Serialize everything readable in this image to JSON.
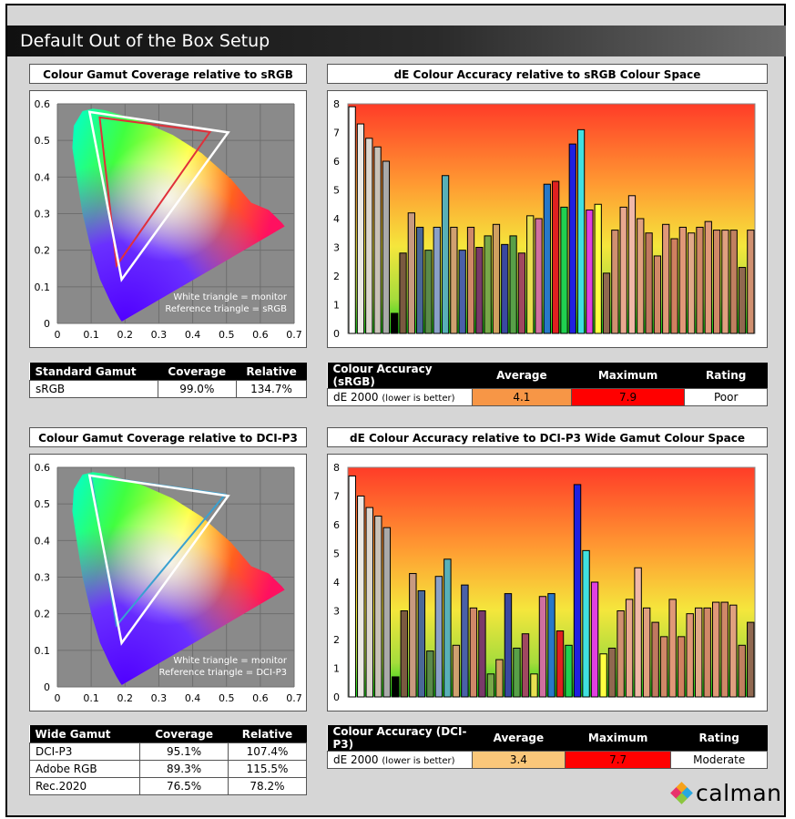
{
  "header": {
    "title": "Default Out of the Box Setup"
  },
  "gamut_srgb": {
    "title": "Colour Gamut Coverage relative to sRGB",
    "note_line1": "White triangle = monitor",
    "note_line2": "Reference triangle = sRGB",
    "ref_color": "#e0303a",
    "table": {
      "headers": [
        "Standard Gamut",
        "Coverage",
        "Relative"
      ],
      "rows": [
        {
          "name": "sRGB",
          "coverage": "99.0%",
          "relative": "134.7%"
        }
      ]
    }
  },
  "gamut_dcip3": {
    "title": "Colour Gamut Coverage relative to DCI-P3",
    "note_line1": "White triangle = monitor",
    "note_line2": "Reference triangle = DCI-P3",
    "ref_color": "#3aa0d0",
    "table": {
      "headers": [
        "Wide Gamut",
        "Coverage",
        "Relative"
      ],
      "rows": [
        {
          "name": "DCI-P3",
          "coverage": "95.1%",
          "relative": "107.4%"
        },
        {
          "name": "Adobe RGB",
          "coverage": "89.3%",
          "relative": "115.5%"
        },
        {
          "name": "Rec.2020",
          "coverage": "76.5%",
          "relative": "78.2%"
        }
      ]
    }
  },
  "de_srgb": {
    "title": "dE Colour Accuracy relative to sRGB Colour Space",
    "table": {
      "headers": [
        "Colour Accuracy (sRGB)",
        "Average",
        "Maximum",
        "Rating"
      ],
      "label": "dE 2000",
      "label_note": "(lower is better)",
      "average": "4.1",
      "maximum": "7.9",
      "rating": "Poor",
      "average_color": "#f79646",
      "maximum_color": "#ff0000"
    }
  },
  "de_dcip3": {
    "title": "dE Colour Accuracy relative to DCI-P3 Wide Gamut Colour Space",
    "table": {
      "headers": [
        "Colour Accuracy (DCI-P3)",
        "Average",
        "Maximum",
        "Rating"
      ],
      "label": "dE 2000",
      "label_note": "(lower is better)",
      "average": "3.4",
      "maximum": "7.7",
      "rating": "Moderate",
      "average_color": "#fac77a",
      "maximum_color": "#ff0000"
    }
  },
  "logo": {
    "text": "calman"
  },
  "chart_data": [
    {
      "type": "scatter",
      "title": "Colour Gamut Coverage relative to sRGB",
      "xlim": [
        0,
        0.7
      ],
      "ylim": [
        0,
        0.6
      ],
      "x_ticks": [
        "0",
        "0.1",
        "0.2",
        "0.3",
        "0.4",
        "0.5",
        "0.6",
        "0.7"
      ],
      "y_ticks": [
        "0",
        "0.1",
        "0.2",
        "0.3",
        "0.4",
        "0.5",
        "0.6"
      ],
      "grid": true,
      "monitor_triangle": [
        [
          0.095,
          0.578
        ],
        [
          0.505,
          0.522
        ],
        [
          0.19,
          0.12
        ]
      ],
      "reference_triangle": [
        [
          0.125,
          0.563
        ],
        [
          0.451,
          0.523
        ],
        [
          0.175,
          0.158
        ]
      ]
    },
    {
      "type": "scatter",
      "title": "Colour Gamut Coverage relative to DCI-P3",
      "xlim": [
        0,
        0.7
      ],
      "ylim": [
        0,
        0.6
      ],
      "x_ticks": [
        "0",
        "0.1",
        "0.2",
        "0.3",
        "0.4",
        "0.5",
        "0.6",
        "0.7"
      ],
      "y_ticks": [
        "0",
        "0.1",
        "0.2",
        "0.3",
        "0.4",
        "0.5",
        "0.6"
      ],
      "grid": true,
      "monitor_triangle": [
        [
          0.095,
          0.578
        ],
        [
          0.505,
          0.522
        ],
        [
          0.19,
          0.12
        ]
      ],
      "reference_triangle": [
        [
          0.099,
          0.578
        ],
        [
          0.496,
          0.526
        ],
        [
          0.175,
          0.168
        ]
      ]
    },
    {
      "type": "bar",
      "title": "dE Colour Accuracy relative to sRGB Colour Space",
      "ylim": [
        0,
        8
      ],
      "y_ticks": [
        "0",
        "1",
        "2",
        "3",
        "4",
        "5",
        "6",
        "7",
        "8"
      ],
      "values": [
        7.9,
        7.3,
        6.8,
        6.5,
        6.0,
        0.7,
        2.8,
        4.2,
        3.7,
        2.9,
        3.7,
        5.5,
        3.7,
        2.9,
        3.7,
        3.0,
        3.4,
        3.8,
        3.1,
        3.4,
        2.8,
        4.1,
        4.0,
        5.2,
        5.3,
        4.4,
        6.6,
        7.1,
        4.3,
        4.5,
        2.1,
        3.6,
        4.4,
        4.8,
        4.0,
        3.5,
        2.7,
        3.8,
        3.3,
        3.7,
        3.5,
        3.7,
        3.9,
        3.6,
        3.6,
        3.6,
        2.3,
        3.6
      ],
      "colors": [
        "#ffffff",
        "#ece9e4",
        "#dcd6ce",
        "#c9c2b8",
        "#aaaaaa",
        "#000000",
        "#7a5a40",
        "#c89a80",
        "#4a6898",
        "#5a8a4a",
        "#8aa0c8",
        "#58b0b8",
        "#d0a070",
        "#4a60a8",
        "#d08868",
        "#7a3a6a",
        "#78a848",
        "#d0a060",
        "#3a48a0",
        "#58a048",
        "#a04860",
        "#e8e050",
        "#d070a0",
        "#2878c8",
        "#e02020",
        "#20d050",
        "#2020e0",
        "#40e0e0",
        "#e040e0",
        "#ffff40",
        "#906850",
        "#d09070",
        "#e8a890",
        "#f0b8a8",
        "#e0a080",
        "#c07860",
        "#d08868",
        "#e09878",
        "#d08060",
        "#e09878",
        "#e0a888",
        "#d08868",
        "#e09878",
        "#d08868",
        "#e0a080",
        "#c08060",
        "#906850",
        "#d09070"
      ]
    },
    {
      "type": "bar",
      "title": "dE Colour Accuracy relative to DCI-P3 Wide Gamut Colour Space",
      "ylim": [
        0,
        8
      ],
      "y_ticks": [
        "0",
        "1",
        "2",
        "3",
        "4",
        "5",
        "6",
        "7",
        "8"
      ],
      "values": [
        7.7,
        7.0,
        6.6,
        6.3,
        5.9,
        0.7,
        3.0,
        4.3,
        3.7,
        1.6,
        4.2,
        4.8,
        1.8,
        3.9,
        3.1,
        3.0,
        0.8,
        1.3,
        3.6,
        1.7,
        2.2,
        0.8,
        3.5,
        3.6,
        2.3,
        1.8,
        7.4,
        5.1,
        4.0,
        1.5,
        1.7,
        3.0,
        3.4,
        4.5,
        3.1,
        2.6,
        2.1,
        3.4,
        2.1,
        2.9,
        3.1,
        3.1,
        3.3,
        3.3,
        3.2,
        1.8,
        2.6
      ],
      "colors": [
        "#ffffff",
        "#ece9e4",
        "#dcd6ce",
        "#c9c2b8",
        "#aaaaaa",
        "#000000",
        "#7a5a40",
        "#c89a80",
        "#4a6898",
        "#5a8a4a",
        "#8aa0c8",
        "#58b0b8",
        "#d0a070",
        "#4a60a8",
        "#d08868",
        "#7a3a6a",
        "#78a848",
        "#d0a060",
        "#3a48a0",
        "#58a048",
        "#a04860",
        "#e8e050",
        "#d070a0",
        "#2878c8",
        "#e02020",
        "#20d050",
        "#2020e0",
        "#40e0e0",
        "#e040e0",
        "#ffff40",
        "#906850",
        "#d09070",
        "#e8a890",
        "#f0b8a8",
        "#e0a080",
        "#c07860",
        "#d08868",
        "#e09878",
        "#d08060",
        "#e09878",
        "#e0a888",
        "#d08868",
        "#e09878",
        "#d08868",
        "#e0a080",
        "#c08060",
        "#906850"
      ]
    }
  ]
}
